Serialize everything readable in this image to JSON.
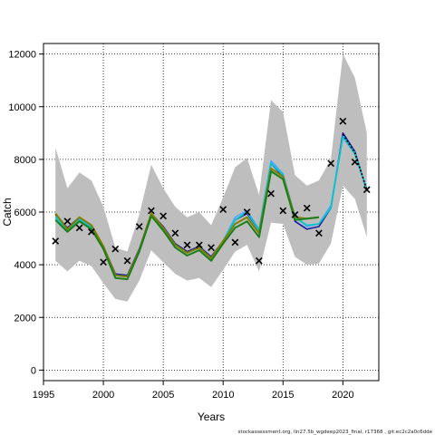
{
  "chart_data": {
    "type": "line",
    "xlabel": "Years",
    "ylabel": "Catch",
    "xlim": [
      1995,
      2023
    ],
    "ylim": [
      -400,
      12400
    ],
    "xticks": [
      1995,
      2000,
      2005,
      2010,
      2015,
      2020
    ],
    "yticks": [
      0,
      2000,
      4000,
      6000,
      8000,
      10000,
      12000
    ],
    "grid": true,
    "footer": "stockassessment.org, lin27.5b_wgdeep2023_final, r17368 , git:ec2c2a0c6dde",
    "x": [
      1996,
      1997,
      1998,
      1999,
      2000,
      2001,
      2002,
      2003,
      2004,
      2005,
      2006,
      2007,
      2008,
      2009,
      2010,
      2011,
      2012,
      2013,
      2014,
      2015,
      2016,
      2017,
      2018,
      2019,
      2020,
      2021,
      2022
    ],
    "band": {
      "upper": [
        8450,
        6900,
        7500,
        7200,
        6200,
        4650,
        4500,
        5900,
        7800,
        6900,
        6200,
        5800,
        6000,
        5500,
        6550,
        7700,
        8050,
        6650,
        10250,
        9800,
        7400,
        7000,
        7200,
        8000,
        12000,
        11100,
        9000
      ],
      "lower": [
        4150,
        3750,
        4150,
        3950,
        3300,
        2700,
        2600,
        3400,
        4550,
        4100,
        3650,
        3400,
        3500,
        3150,
        3800,
        4500,
        4750,
        3750,
        5600,
        5550,
        4300,
        4000,
        4050,
        4800,
        7000,
        6500,
        5050
      ]
    },
    "observed": [
      4900,
      5650,
      5400,
      5250,
      4100,
      4600,
      4150,
      5450,
      6050,
      5850,
      5200,
      4750,
      4750,
      4650,
      6100,
      4850,
      6000,
      4150,
      6700,
      6050,
      5900,
      6150,
      5200,
      7850,
      9450,
      7900,
      6850
    ],
    "series": [
      {
        "name": "",
        "color": "#1a1aa0",
        "values": [
          5900,
          5400,
          5800,
          5500,
          4700,
          3650,
          3600,
          4600,
          5950,
          5450,
          4800,
          4500,
          4700,
          4300,
          4900,
          5700,
          5950,
          5300,
          7850,
          7350,
          5650,
          5350,
          5450,
          6150,
          9000,
          8300,
          6800
        ]
      },
      {
        "name": "",
        "color": "#4aa8ff",
        "values": [
          5850,
          5350,
          5750,
          5450,
          4650,
          3600,
          3550,
          4550,
          5950,
          5400,
          4750,
          4450,
          4650,
          4250,
          4900,
          5800,
          6050,
          5350,
          7950,
          7450,
          5850,
          5450,
          5550,
          6250,
          8900,
          8250,
          6850
        ]
      },
      {
        "name": "",
        "color": "#00c8c8",
        "values": [
          5800,
          5300,
          5700,
          5400,
          4600,
          3600,
          3550,
          4500,
          5900,
          5400,
          4750,
          4450,
          4650,
          4250,
          4900,
          5700,
          6000,
          5300,
          7850,
          7400,
          5800,
          5500,
          5550,
          6150,
          8850,
          8200,
          6850
        ]
      },
      {
        "name": "",
        "color": "#7f7f00",
        "values": [
          5950,
          5350,
          5800,
          5500,
          4700,
          3600,
          3550,
          4550,
          5950,
          5400,
          4750,
          4450,
          4650,
          4250,
          4900,
          5550,
          5800,
          5200,
          7650,
          7350,
          5800,
          5750,
          5800,
          null,
          null,
          null,
          null
        ]
      },
      {
        "name": "",
        "color": "#1a7f1a",
        "values": [
          5700,
          5250,
          5650,
          5350,
          4600,
          3500,
          3450,
          4500,
          5850,
          5300,
          4650,
          4350,
          4550,
          4150,
          4800,
          5400,
          5650,
          5050,
          7550,
          7250,
          5700,
          5750,
          5800,
          null,
          null,
          null,
          null
        ]
      }
    ],
    "dotted_series": {
      "color": "#000000",
      "values": [
        null,
        null,
        null,
        null,
        null,
        null,
        null,
        null,
        null,
        null,
        null,
        null,
        null,
        null,
        null,
        null,
        null,
        null,
        null,
        null,
        null,
        null,
        null,
        null,
        8950,
        8250,
        6850
      ]
    }
  }
}
